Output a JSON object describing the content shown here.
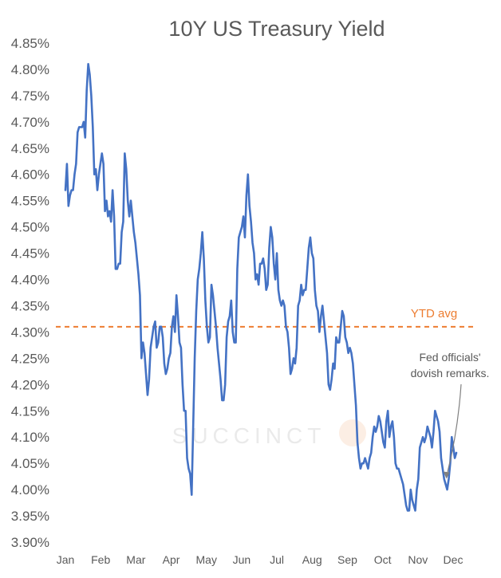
{
  "chart_data": {
    "type": "line",
    "title": "10Y US Treasury Yield",
    "xlabel": "",
    "ylabel": "",
    "ylim": [
      3.9,
      4.85
    ],
    "ytick_step": 0.05,
    "ytick_format": "percent2",
    "months": [
      "Jan",
      "Feb",
      "Mar",
      "Apr",
      "May",
      "Jun",
      "Jul",
      "Aug",
      "Sep",
      "Oct",
      "Nov",
      "Dec"
    ],
    "reference_line": {
      "label": "YTD avg",
      "value": 4.31,
      "color": "#ED7D31"
    },
    "annotation": {
      "text_line1": "Fed officials'",
      "text_line2": "dovish remarks.",
      "target_day": 250
    },
    "watermark": "SUCCINCT",
    "colors": {
      "series": "#4472C4",
      "text": "#595959",
      "avg": "#ED7D31",
      "arrow": "#808080"
    },
    "series": [
      {
        "name": "10Y US Treasury Yield",
        "x_unit": "trading day index (Jan–Dec)",
        "values": [
          4.57,
          4.62,
          4.54,
          4.56,
          4.57,
          4.57,
          4.6,
          4.62,
          4.68,
          4.69,
          4.69,
          4.69,
          4.7,
          4.67,
          4.76,
          4.81,
          4.79,
          4.75,
          4.69,
          4.6,
          4.61,
          4.57,
          4.6,
          4.62,
          4.64,
          4.62,
          4.53,
          4.55,
          4.52,
          4.53,
          4.51,
          4.57,
          4.52,
          4.42,
          4.42,
          4.43,
          4.43,
          4.49,
          4.51,
          4.64,
          4.61,
          4.55,
          4.52,
          4.55,
          4.52,
          4.49,
          4.47,
          4.44,
          4.41,
          4.37,
          4.25,
          4.28,
          4.26,
          4.22,
          4.18,
          4.21,
          4.27,
          4.29,
          4.31,
          4.32,
          4.27,
          4.28,
          4.31,
          4.31,
          4.29,
          4.24,
          4.22,
          4.23,
          4.25,
          4.26,
          4.31,
          4.33,
          4.3,
          4.37,
          4.33,
          4.28,
          4.27,
          4.2,
          4.15,
          4.15,
          4.06,
          4.04,
          4.03,
          3.99,
          4.12,
          4.25,
          4.34,
          4.4,
          4.42,
          4.45,
          4.49,
          4.44,
          4.36,
          4.31,
          4.28,
          4.29,
          4.39,
          4.37,
          4.34,
          4.31,
          4.27,
          4.24,
          4.21,
          4.17,
          4.17,
          4.2,
          4.29,
          4.32,
          4.33,
          4.36,
          4.3,
          4.28,
          4.28,
          4.42,
          4.48,
          4.49,
          4.5,
          4.52,
          4.48,
          4.56,
          4.6,
          4.54,
          4.51,
          4.47,
          4.45,
          4.4,
          4.41,
          4.39,
          4.43,
          4.43,
          4.44,
          4.42,
          4.38,
          4.39,
          4.46,
          4.5,
          4.48,
          4.43,
          4.4,
          4.45,
          4.38,
          4.36,
          4.35,
          4.36,
          4.35,
          4.31,
          4.3,
          4.27,
          4.22,
          4.23,
          4.25,
          4.24,
          4.27,
          4.35,
          4.36,
          4.39,
          4.37,
          4.38,
          4.38,
          4.42,
          4.46,
          4.48,
          4.45,
          4.44,
          4.38,
          4.35,
          4.34,
          4.3,
          4.33,
          4.35,
          4.32,
          4.29,
          4.26,
          4.2,
          4.19,
          4.21,
          4.24,
          4.23,
          4.29,
          4.28,
          4.28,
          4.31,
          4.34,
          4.33,
          4.29,
          4.28,
          4.26,
          4.27,
          4.26,
          4.24,
          4.2,
          4.16,
          4.09,
          4.06,
          4.04,
          4.05,
          4.05,
          4.06,
          4.05,
          4.04,
          4.06,
          4.07,
          4.1,
          4.12,
          4.11,
          4.12,
          4.14,
          4.13,
          4.11,
          4.09,
          4.08,
          4.13,
          4.15,
          4.1,
          4.12,
          4.13,
          4.1,
          4.05,
          4.04,
          4.04,
          4.03,
          4.02,
          4.01,
          3.99,
          3.97,
          3.96,
          3.96,
          4.0,
          3.98,
          3.97,
          3.96,
          4.0,
          4.02,
          4.08,
          4.09,
          4.1,
          4.09,
          4.1,
          4.12,
          4.11,
          4.1,
          4.08,
          4.11,
          4.15,
          4.14,
          4.13,
          4.11,
          4.06,
          4.04,
          4.02,
          4.01,
          4.0,
          4.02,
          4.05,
          4.1,
          4.08,
          4.06,
          4.07
        ]
      }
    ]
  }
}
